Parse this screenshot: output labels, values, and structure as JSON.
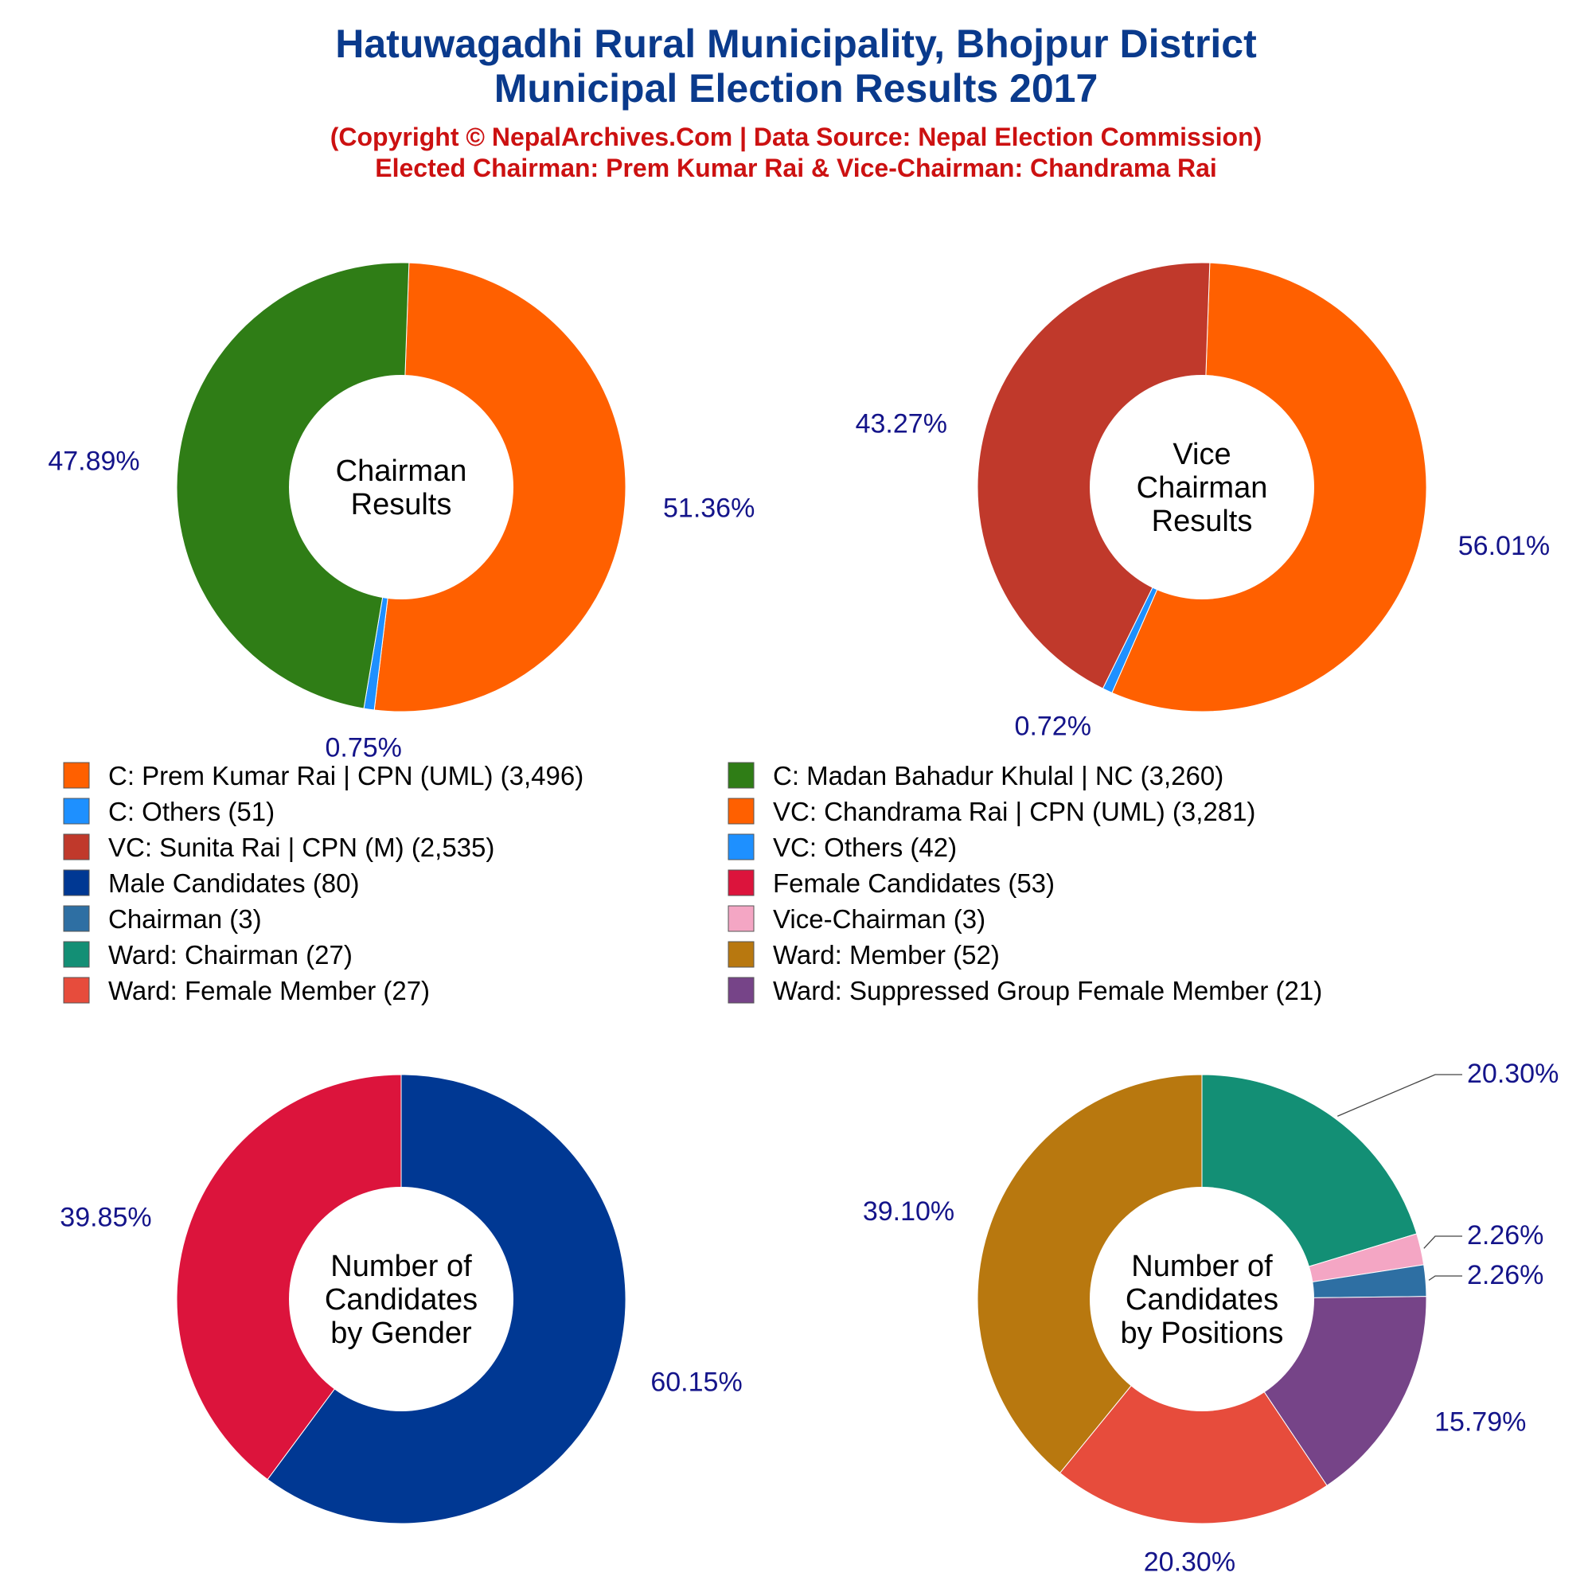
{
  "title": {
    "line1": "Hatuwagadhi Rural Municipality, Bhojpur District",
    "line2": "Municipal Election Results 2017"
  },
  "subtitle": {
    "line1": "(Copyright © NepalArchives.Com | Data Source: Nepal Election Commission)",
    "line2": "Elected Chairman: Prem Kumar Rai & Vice-Chairman: Chandrama Rai"
  },
  "colors": {
    "title": "#0a3a8c",
    "subtitle": "#cc1111",
    "percent_labels": "#14148a"
  },
  "legend": [
    {
      "label": "C: Prem Kumar Rai | CPN (UML) (3,496)",
      "color": "#ff6000"
    },
    {
      "label": "C: Madan Bahadur Khulal | NC (3,260)",
      "color": "#2f7d16"
    },
    {
      "label": "C: Others (51)",
      "color": "#1e90ff"
    },
    {
      "label": "VC: Chandrama Rai | CPN (UML) (3,281)",
      "color": "#ff6000"
    },
    {
      "label": "VC: Sunita Rai | CPN (M) (2,535)",
      "color": "#c0392b"
    },
    {
      "label": "VC: Others (42)",
      "color": "#1e90ff"
    },
    {
      "label": "Male Candidates (80)",
      "color": "#003893"
    },
    {
      "label": "Female Candidates (53)",
      "color": "#dc143c"
    },
    {
      "label": "Chairman (3)",
      "color": "#2e6fa3"
    },
    {
      "label": "Vice-Chairman (3)",
      "color": "#f4a6c4"
    },
    {
      "label": "Ward: Chairman (27)",
      "color": "#138f75"
    },
    {
      "label": "Ward: Member (52)",
      "color": "#b8780f"
    },
    {
      "label": "Ward: Female Member (27)",
      "color": "#e74c3c"
    },
    {
      "label": "Ward: Suppressed Group Female Member (21)",
      "color": "#764488"
    }
  ],
  "chart_data": [
    {
      "type": "pie",
      "center_label": [
        "Chairman",
        "Results"
      ],
      "slices": [
        {
          "label": "C: Prem Kumar Rai | CPN (UML)",
          "value": 3496,
          "percent_label": "51.36%",
          "color": "#ff6000"
        },
        {
          "label": "C: Others",
          "value": 51,
          "percent_label": "0.75%",
          "color": "#1e90ff"
        },
        {
          "label": "C: Madan Bahadur Khulal | NC",
          "value": 3260,
          "percent_label": "47.89%",
          "color": "#2f7d16"
        }
      ]
    },
    {
      "type": "pie",
      "center_label": [
        "Vice",
        "Chairman",
        "Results"
      ],
      "slices": [
        {
          "label": "VC: Chandrama Rai | CPN (UML)",
          "value": 3281,
          "percent_label": "56.01%",
          "color": "#ff6000"
        },
        {
          "label": "VC: Others",
          "value": 42,
          "percent_label": "0.72%",
          "color": "#1e90ff"
        },
        {
          "label": "VC: Sunita Rai | CPN (M)",
          "value": 2535,
          "percent_label": "43.27%",
          "color": "#c0392b"
        }
      ]
    },
    {
      "type": "pie",
      "center_label": [
        "Number of",
        "Candidates",
        "by Gender"
      ],
      "slices": [
        {
          "label": "Male Candidates",
          "value": 80,
          "percent_label": "60.15%",
          "color": "#003893"
        },
        {
          "label": "Female Candidates",
          "value": 53,
          "percent_label": "39.85%",
          "color": "#dc143c"
        }
      ]
    },
    {
      "type": "pie",
      "center_label": [
        "Number of",
        "Candidates",
        "by Positions"
      ],
      "slices": [
        {
          "label": "Ward: Chairman",
          "value": 27,
          "percent_label": "20.30%",
          "color": "#138f75"
        },
        {
          "label": "Vice-Chairman",
          "value": 3,
          "percent_label": "2.26%",
          "color": "#f4a6c4"
        },
        {
          "label": "Chairman",
          "value": 3,
          "percent_label": "2.26%",
          "color": "#2e6fa3"
        },
        {
          "label": "Ward: Suppressed Group Female Member",
          "value": 21,
          "percent_label": "15.79%",
          "color": "#764488"
        },
        {
          "label": "Ward: Female Member",
          "value": 27,
          "percent_label": "20.30%",
          "color": "#e74c3c"
        },
        {
          "label": "Ward: Member",
          "value": 52,
          "percent_label": "39.10%",
          "color": "#b8780f"
        }
      ]
    }
  ]
}
